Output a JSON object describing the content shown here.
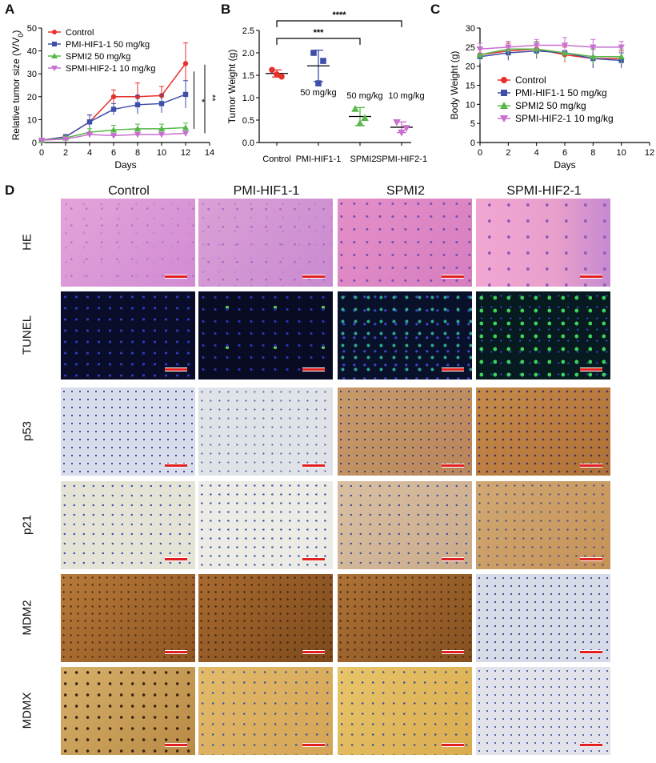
{
  "panel_letters": {
    "a": "A",
    "b": "B",
    "c": "C",
    "d": "D"
  },
  "colors": {
    "control": "#e8302a",
    "pmi": "#3f4fa8",
    "spmi2": "#56b848",
    "spmihif2": "#c86fd0"
  },
  "chart_data": [
    {
      "id": "A",
      "type": "line",
      "xlabel": "Days",
      "ylabel": "Relative tumor size (V/V0)",
      "xlim": [
        0,
        14
      ],
      "ylim": [
        0,
        50
      ],
      "xticks": [
        0,
        2,
        4,
        6,
        8,
        10,
        12,
        14
      ],
      "yticks": [
        0,
        10,
        20,
        30,
        40,
        50
      ],
      "grid": false,
      "legend": "top-left",
      "x": [
        0,
        2,
        4,
        6,
        8,
        10,
        12
      ],
      "series": [
        {
          "name": "Control",
          "color": "#e8302a",
          "marker": "circle",
          "values": [
            1,
            2.5,
            9,
            20,
            20,
            20.5,
            34.5
          ],
          "err": [
            0,
            1,
            3,
            3,
            6,
            4,
            9
          ]
        },
        {
          "name": "PMI-HIF1-1 50 mg/kg",
          "color": "#3f4fa8",
          "marker": "square",
          "values": [
            1,
            2.5,
            9,
            14.5,
            16.5,
            17,
            21
          ],
          "err": [
            0,
            1,
            3,
            2.5,
            4,
            4,
            6
          ]
        },
        {
          "name": "SPMI2 50 mg/kg",
          "color": "#56b848",
          "marker": "triangle-up",
          "values": [
            1,
            2,
            4.5,
            5.5,
            6,
            6,
            6.5
          ],
          "err": [
            0,
            0.8,
            1.5,
            2,
            2,
            2,
            2
          ]
        },
        {
          "name": "SPMI-HIF2-1 10 mg/kg",
          "color": "#c86fd0",
          "marker": "triangle-down",
          "values": [
            1,
            1.5,
            3.5,
            3,
            3.5,
            3.5,
            4
          ],
          "err": [
            0,
            0.5,
            1,
            1,
            1,
            1,
            1
          ]
        }
      ],
      "annotations": [
        "*",
        "**"
      ]
    },
    {
      "id": "B",
      "type": "scatter",
      "ylabel": "Tumor Weight (g)",
      "ylim": [
        0,
        2.5
      ],
      "yticks": [
        0.0,
        0.5,
        1.0,
        1.5,
        2.0,
        2.5
      ],
      "categories": [
        "Control",
        "PMI-HIF1-1",
        "SPMI2",
        "SPMI-HIF2-1"
      ],
      "dose_labels": [
        "",
        "50 mg/kg",
        "50 mg/kg",
        "10 mg/kg"
      ],
      "series": [
        {
          "category": "Control",
          "color": "#e8302a",
          "marker": "circle",
          "points": [
            1.62,
            1.47,
            1.52
          ],
          "mean": 1.54,
          "sd": 0.08
        },
        {
          "category": "PMI-HIF1-1",
          "color": "#3f4fa8",
          "marker": "square",
          "points": [
            2.0,
            1.82,
            1.32
          ],
          "mean": 1.71,
          "sd": 0.35
        },
        {
          "category": "SPMI2",
          "color": "#56b848",
          "marker": "triangle-up",
          "points": [
            0.75,
            0.55,
            0.43
          ],
          "mean": 0.58,
          "sd": 0.2
        },
        {
          "category": "SPMI-HIF2-1",
          "color": "#c86fd0",
          "marker": "triangle-down",
          "points": [
            0.45,
            0.32,
            0.22
          ],
          "mean": 0.34,
          "sd": 0.12
        }
      ],
      "brackets": [
        {
          "from": 0,
          "to": 2,
          "label": "***"
        },
        {
          "from": 0,
          "to": 3,
          "label": "****"
        }
      ]
    },
    {
      "id": "C",
      "type": "line",
      "xlabel": "Days",
      "ylabel": "Body Weight (g)",
      "xlim": [
        0,
        12
      ],
      "ylim": [
        0,
        30
      ],
      "xticks": [
        0,
        2,
        4,
        6,
        8,
        10,
        12
      ],
      "yticks": [
        0,
        5,
        10,
        15,
        20,
        25,
        30
      ],
      "grid": false,
      "legend": "bottom-left",
      "x": [
        0,
        2,
        4,
        6,
        8,
        10
      ],
      "series": [
        {
          "name": "Control",
          "color": "#e8302a",
          "marker": "circle",
          "values": [
            23,
            24,
            24.5,
            23,
            22,
            22
          ],
          "err": [
            2,
            2,
            2,
            2,
            2.5,
            2
          ]
        },
        {
          "name": "PMI-HIF1-1 50 mg/kg",
          "color": "#3f4fa8",
          "marker": "square",
          "values": [
            22.5,
            23.5,
            24,
            23.5,
            22,
            21.5
          ],
          "err": [
            2,
            2,
            2,
            2,
            2.5,
            2
          ]
        },
        {
          "name": "SPMI2 50 mg/kg",
          "color": "#56b848",
          "marker": "triangle-up",
          "values": [
            23,
            24.5,
            24.5,
            23.5,
            22.5,
            22.5
          ],
          "err": [
            2,
            2,
            2,
            2,
            2,
            2
          ]
        },
        {
          "name": "SPMI-HIF2-1 10 mg/kg",
          "color": "#c86fd0",
          "marker": "triangle-down",
          "values": [
            24.5,
            25,
            25.5,
            25.5,
            25,
            25
          ],
          "err": [
            1.5,
            1.5,
            1.5,
            2,
            2,
            1.5
          ]
        }
      ]
    }
  ],
  "micrographs": {
    "columns": [
      "Control",
      "PMI-HIF1-1",
      "SPMI2",
      "SPMI-HIF2-1"
    ],
    "rows": [
      "HE",
      "TUNEL",
      "p53",
      "p21",
      "MDM2",
      "MDMX"
    ]
  }
}
